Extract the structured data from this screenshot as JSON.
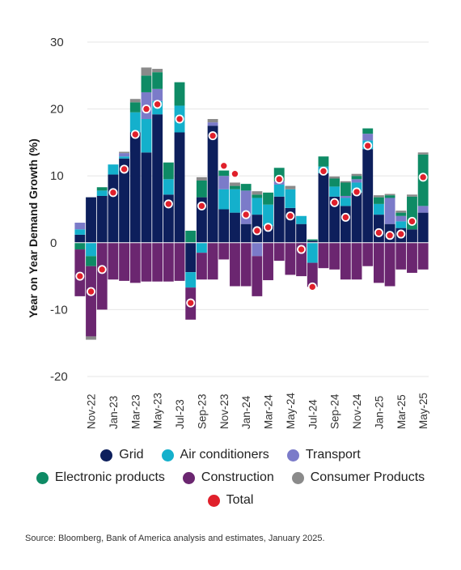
{
  "chart_data": {
    "type": "bar",
    "stacked": true,
    "ylabel": "Year on Year Demand Growth (%)",
    "ylim": [
      -20,
      30
    ],
    "yticks": [
      -20,
      -10,
      0,
      10,
      20,
      30
    ],
    "ytick_labels": [
      "-20",
      "-10",
      "0",
      "10",
      "20",
      "30"
    ],
    "grid": true,
    "legend_position": "bottom",
    "categories": [
      "Oct-22",
      "Nov-22",
      "Dec-22",
      "Jan-23",
      "Feb-23",
      "Mar-23",
      "Apr-23",
      "May-23",
      "Jun-23",
      "Jul-23",
      "Aug-23",
      "Sep-23",
      "Oct-23",
      "Nov-23",
      "Dec-23",
      "Jan-24",
      "Feb-24",
      "Mar-24",
      "Apr-24",
      "May-24",
      "Jun-24",
      "Jul-24",
      "Aug-24",
      "Sep-24",
      "Oct-24",
      "Nov-24",
      "Dec-24",
      "Jan-25",
      "Feb-25",
      "Mar-25",
      "Apr-25",
      "May-25"
    ],
    "x_tick_labels": [
      "Nov-22",
      "Jan-23",
      "Mar-23",
      "May-23",
      "Jul-23",
      "Sep-23",
      "Nov-23",
      "Jan-24",
      "Mar-24",
      "May-24",
      "Jul-24",
      "Sep-24",
      "Nov-24",
      "Jan-25",
      "Mar-25",
      "May-25"
    ],
    "series": [
      {
        "name": "Grid",
        "color": "#0d1f5c",
        "values": [
          1.2,
          6.8,
          7.0,
          10.2,
          12.6,
          16.5,
          13.5,
          19.2,
          7.2,
          16.5,
          -4.4,
          6.8,
          17.5,
          5.0,
          4.5,
          2.8,
          4.2,
          2.5,
          6.9,
          5.2,
          2.8,
          0.3,
          10.4,
          6.9,
          5.5,
          7.5,
          14.0,
          4.2,
          2.8,
          2.2,
          2.0,
          4.5
        ]
      },
      {
        "name": "Air conditioners",
        "color": "#14b0cc",
        "values": [
          0.8,
          -2.0,
          0.8,
          1.5,
          0.3,
          3.0,
          5.0,
          2.0,
          2.3,
          4.0,
          -2.3,
          -1.5,
          0.0,
          3.0,
          3.5,
          0.0,
          2.5,
          3.2,
          1.8,
          2.8,
          1.2,
          -3.0,
          1.0,
          1.5,
          1.2,
          1.5,
          1.3,
          1.6,
          0.0,
          1.0,
          0.0,
          0.0
        ]
      },
      {
        "name": "Transport",
        "color": "#7b7bc9",
        "values": [
          1.0,
          0.0,
          0.0,
          0.0,
          0.5,
          0.0,
          4.0,
          1.8,
          0.0,
          0.0,
          0.0,
          0.0,
          0.5,
          2.0,
          0.0,
          5.0,
          -2.0,
          0.0,
          0.5,
          0.0,
          0.0,
          0.0,
          0.0,
          0.0,
          0.3,
          0.5,
          1.0,
          0.0,
          3.9,
          0.8,
          0.0,
          1.0
        ]
      },
      {
        "name": "Electronic products",
        "color": "#0e8b65",
        "values": [
          -1.0,
          -1.5,
          0.5,
          0.0,
          0.0,
          1.5,
          2.5,
          2.5,
          2.5,
          3.5,
          1.8,
          2.5,
          0.0,
          0.8,
          0.5,
          1.0,
          0.5,
          1.8,
          2.0,
          0.0,
          0.0,
          0.2,
          1.5,
          1.2,
          2.0,
          0.5,
          0.8,
          1.0,
          0.4,
          0.5,
          4.9,
          7.7
        ]
      },
      {
        "name": "Construction",
        "color": "#6b2670",
        "values": [
          -7.0,
          -10.5,
          -10.0,
          -5.5,
          -5.7,
          -6.0,
          -5.8,
          -5.8,
          -5.8,
          -5.7,
          -4.8,
          -4.0,
          -5.5,
          -2.5,
          -6.5,
          -6.5,
          -6.0,
          -5.6,
          -2.7,
          -4.8,
          -5.0,
          -3.6,
          -3.8,
          -4.0,
          -5.5,
          -5.5,
          -3.5,
          -6.0,
          -6.5,
          -4.0,
          -4.5,
          -4.0
        ]
      },
      {
        "name": "Consumer Products",
        "color": "#8a8a8a",
        "values": [
          0.0,
          -0.5,
          0.0,
          0.0,
          0.2,
          0.5,
          1.2,
          0.5,
          0.0,
          0.0,
          0.0,
          0.5,
          0.5,
          0.0,
          0.5,
          0.0,
          0.5,
          0.0,
          0.0,
          0.5,
          0.0,
          0.0,
          0.0,
          0.3,
          0.2,
          0.3,
          0.0,
          0.3,
          0.2,
          0.3,
          0.3,
          0.3
        ]
      }
    ],
    "total": {
      "name": "Total",
      "color": "#e0202b",
      "values": [
        -5.0,
        -7.3,
        -4.0,
        7.5,
        11.0,
        16.2,
        20.0,
        20.7,
        5.8,
        18.5,
        -9.0,
        5.5,
        16.0,
        11.5,
        10.3,
        4.2,
        1.8,
        2.3,
        9.5,
        4.0,
        -1.0,
        -6.6,
        10.7,
        6.0,
        3.8,
        7.6,
        14.5,
        1.5,
        1.1,
        1.3,
        3.2,
        9.8
      ]
    }
  },
  "source": "Source: Bloomberg, Bank of America analysis and estimates, January 2025."
}
